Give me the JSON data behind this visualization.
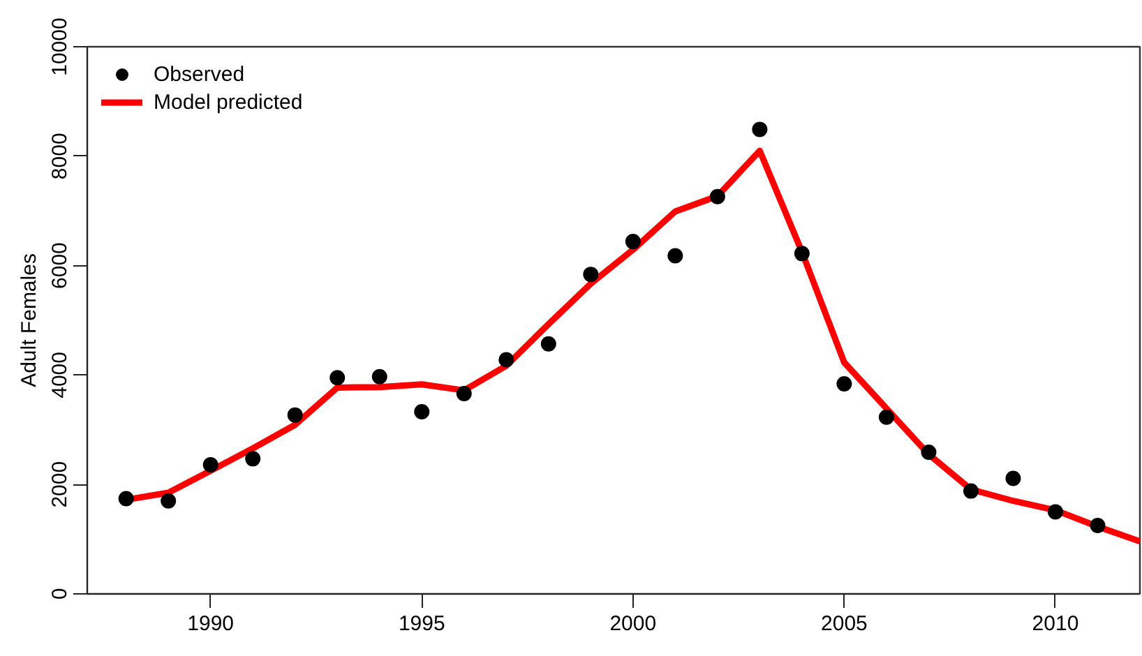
{
  "chart_data": {
    "type": "line",
    "ylabel": "Adult Females",
    "x": [
      1988,
      1989,
      1990,
      1991,
      1992,
      1993,
      1994,
      1995,
      1996,
      1997,
      1998,
      1999,
      2000,
      2001,
      2002,
      2003,
      2004,
      2005,
      2006,
      2007,
      2008,
      2009,
      2010,
      2011,
      2012
    ],
    "series": [
      {
        "name": "Observed",
        "type": "scatter",
        "color": "#000000",
        "x": [
          1988,
          1989,
          1990,
          1991,
          1992,
          1993,
          1994,
          1995,
          1996,
          1997,
          1998,
          1999,
          2000,
          2001,
          2002,
          2003,
          2004,
          2005,
          2006,
          2007,
          2008,
          2009,
          2010,
          2011
        ],
        "values": [
          1740,
          1700,
          2360,
          2470,
          3270,
          3950,
          3970,
          3330,
          3660,
          4280,
          4570,
          5840,
          6440,
          6180,
          7260,
          8490,
          6220,
          3840,
          3230,
          2590,
          1880,
          2110,
          1500,
          1250
        ],
        "marker": "circle"
      },
      {
        "name": "Model predicted",
        "color": "#ff0000",
        "values": [
          1720,
          1850,
          2250,
          2660,
          3090,
          3770,
          3780,
          3830,
          3720,
          4170,
          4930,
          5670,
          6290,
          6990,
          7270,
          8100,
          6250,
          4230,
          3390,
          2550,
          1910,
          1700,
          1530,
          1230,
          960
        ],
        "line_style": "solid"
      }
    ],
    "xlim": [
      1987.08,
      2012
    ],
    "ylim": [
      0,
      10000
    ],
    "xticks": [
      1990,
      1995,
      2000,
      2005,
      2010
    ],
    "yticks": [
      0,
      2000,
      4000,
      6000,
      8000,
      10000
    ],
    "grid": false,
    "legend": "top left"
  }
}
